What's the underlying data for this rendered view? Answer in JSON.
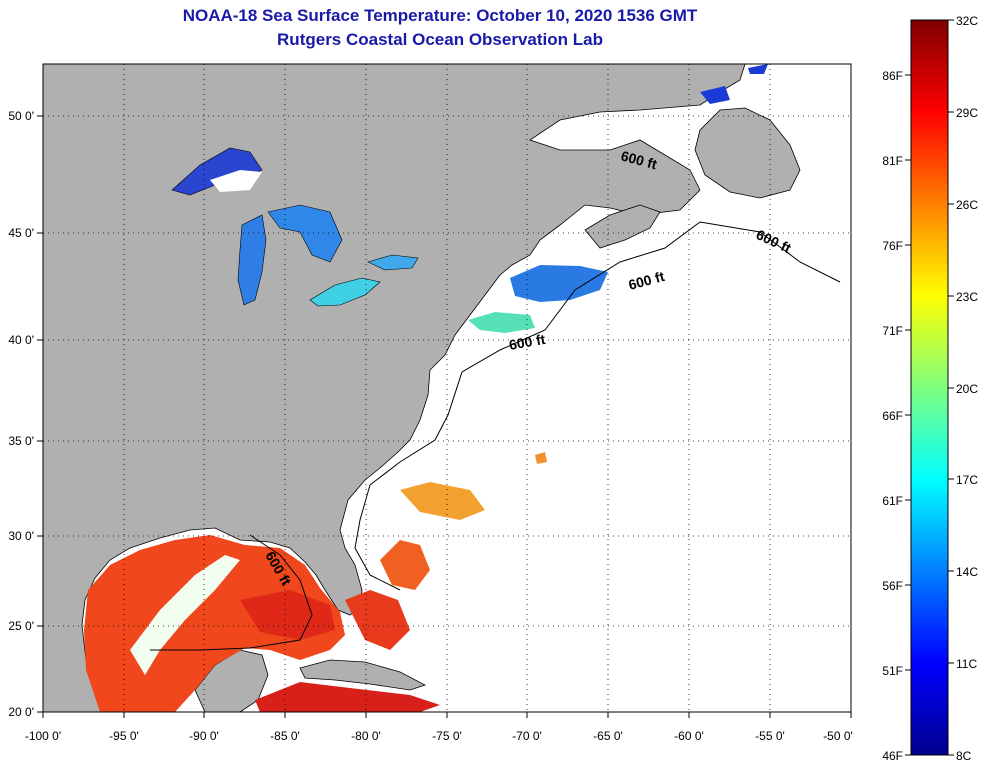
{
  "header": {
    "title": "NOAA-18 Sea Surface Temperature:  October 10, 2020 1536 GMT",
    "subtitle": "Rutgers Coastal Ocean Observation Lab"
  },
  "axes": {
    "lon_ticks": [
      "-100 0'",
      "-95 0'",
      "-90 0'",
      "-85 0'",
      "-80 0'",
      "-75 0'",
      "-70 0'",
      "-65 0'",
      "-60 0'",
      "-55 0'",
      "-50 0'"
    ],
    "lat_ticks": [
      "50 0'",
      "45 0'",
      "40 0'",
      "35 0'",
      "30 0'",
      "25 0'",
      "20 0'"
    ]
  },
  "contour_labels": [
    "600 ft",
    "600 ft",
    "600 ft",
    "600 ft",
    "600 ft"
  ],
  "colorbar": {
    "celsius": [
      "32C",
      "29C",
      "26C",
      "23C",
      "20C",
      "17C",
      "14C",
      "11C",
      "8C"
    ],
    "fahrenheit": [
      "86F",
      "81F",
      "76F",
      "71F",
      "66F",
      "61F",
      "56F",
      "51F",
      "46F"
    ]
  },
  "colors": {
    "land": "#b0b0b0",
    "title": "#1a1aa8",
    "warm": "#e8301a",
    "cool": "#1a6ae8"
  }
}
